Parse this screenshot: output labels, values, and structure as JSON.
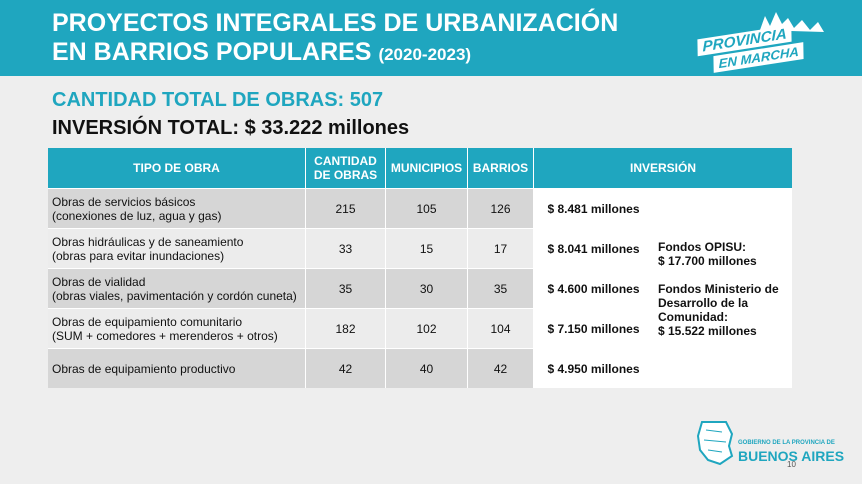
{
  "header": {
    "title_line1": "PROYECTOS INTEGRALES DE URBANIZACIÓN",
    "title_line2": "EN BARRIOS POPULARES",
    "years": "(2020-2023)"
  },
  "logo": {
    "word1": "PROVINCIA",
    "word2": "EN MARCHA"
  },
  "totals": {
    "obras": "CANTIDAD TOTAL DE OBRAS: 507",
    "inversion": "INVERSIÓN TOTAL: $ 33.222 millones"
  },
  "table": {
    "headers": {
      "tipo": "TIPO DE OBRA",
      "cantidad_1": "CANTIDAD",
      "cantidad_2": "DE OBRAS",
      "municipios": "MUNICIPIOS",
      "barrios": "BARRIOS",
      "inversion": "INVERSIÓN"
    },
    "rows": [
      {
        "tipo_1": "Obras de servicios básicos",
        "tipo_2": "(conexiones de luz, agua y gas)",
        "cantidad": "215",
        "municipios": "105",
        "barrios": "126",
        "inversion": "$ 8.481 millones"
      },
      {
        "tipo_1": "Obras hidráulicas y de saneamiento",
        "tipo_2": "(obras para evitar inundaciones)",
        "cantidad": "33",
        "municipios": "15",
        "barrios": "17",
        "inversion": "$ 8.041 millones"
      },
      {
        "tipo_1": "Obras de vialidad",
        "tipo_2": "(obras viales, pavimentación y cordón cuneta)",
        "cantidad": "35",
        "municipios": "30",
        "barrios": "35",
        "inversion": "$ 4.600 millones"
      },
      {
        "tipo_1": "Obras de equipamiento comunitario",
        "tipo_2": "(SUM + comedores + merenderos + otros)",
        "cantidad": "182",
        "municipios": "102",
        "barrios": "104",
        "inversion": "$ 7.150 millones"
      },
      {
        "tipo_1": "Obras de equipamiento productivo",
        "tipo_2": "",
        "cantidad": "42",
        "municipios": "40",
        "barrios": "42",
        "inversion": "$ 4.950 millones"
      }
    ],
    "funds": {
      "opisu_label": "Fondos OPISU:",
      "opisu_amount": "$ 17.700 millones",
      "ministerio_label": "Fondos Ministerio de Desarrollo de la Comunidad:",
      "ministerio_amount": "$ 15.522 millones"
    }
  },
  "footer": {
    "gov_small": "GOBIERNO DE LA PROVINCIA DE",
    "gov_big": "BUENOS AIRES",
    "page_number": "10"
  }
}
